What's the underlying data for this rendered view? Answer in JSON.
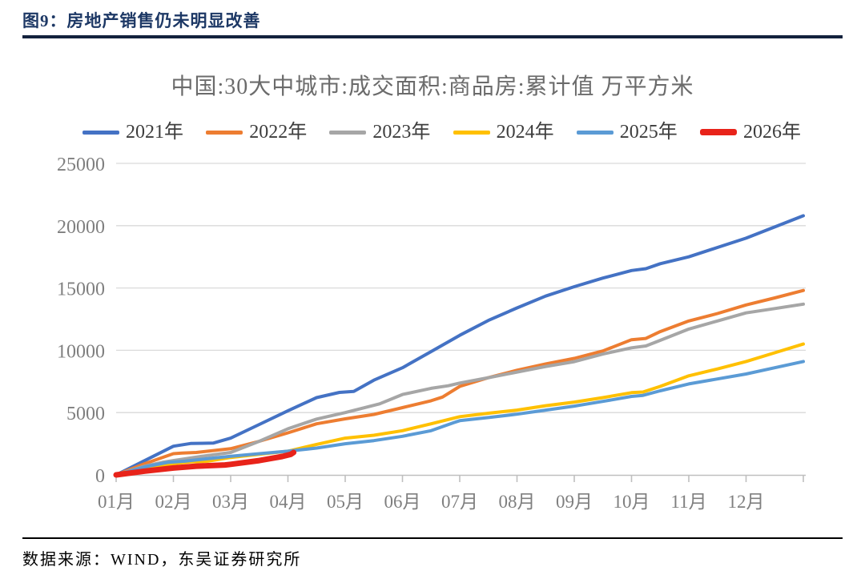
{
  "header": {
    "figure_title": "图9：房地产销售仍未明显改善"
  },
  "footer": {
    "source": "数据来源：WIND，东吴证券研究所"
  },
  "chart_data": {
    "type": "line",
    "title": "中国:30大中城市:成交面积:商品房:累计值 万平方米",
    "xlabel": "",
    "ylabel": "",
    "x_unit": "month",
    "xlabels": [
      "01月",
      "02月",
      "03月",
      "04月",
      "05月",
      "06月",
      "07月",
      "08月",
      "09月",
      "10月",
      "11月",
      "12月"
    ],
    "ylim": [
      0,
      25000
    ],
    "yticks": [
      0,
      5000,
      10000,
      15000,
      20000,
      25000
    ],
    "grid": true,
    "legend_position": "top",
    "axis_color": "#bfbfbf",
    "grid_color": "#dadada",
    "tick_label_color": "#7f7f7f",
    "series": [
      {
        "name": "2021年",
        "color": "#4472C4",
        "width": 4,
        "points": [
          [
            0,
            0
          ],
          [
            0.5,
            1150
          ],
          [
            1,
            2300
          ],
          [
            1.3,
            2520
          ],
          [
            1.7,
            2560
          ],
          [
            2,
            2950
          ],
          [
            2.5,
            4050
          ],
          [
            3,
            5150
          ],
          [
            3.5,
            6200
          ],
          [
            3.9,
            6620
          ],
          [
            4.15,
            6700
          ],
          [
            4.5,
            7600
          ],
          [
            5,
            8600
          ],
          [
            5.5,
            9900
          ],
          [
            6,
            11200
          ],
          [
            6.5,
            12400
          ],
          [
            7,
            13400
          ],
          [
            7.5,
            14350
          ],
          [
            8,
            15100
          ],
          [
            8.5,
            15800
          ],
          [
            9,
            16400
          ],
          [
            9.25,
            16550
          ],
          [
            9.5,
            16950
          ],
          [
            10,
            17500
          ],
          [
            10.5,
            18250
          ],
          [
            11,
            19000
          ],
          [
            11.5,
            19900
          ],
          [
            12,
            20800
          ]
        ]
      },
      {
        "name": "2022年",
        "color": "#ED7D31",
        "width": 4,
        "points": [
          [
            0,
            0
          ],
          [
            0.5,
            900
          ],
          [
            1,
            1700
          ],
          [
            1.15,
            1750
          ],
          [
            1.4,
            1800
          ],
          [
            2,
            2100
          ],
          [
            2.5,
            2700
          ],
          [
            3,
            3375
          ],
          [
            3.5,
            4100
          ],
          [
            4,
            4500
          ],
          [
            4.5,
            4850
          ],
          [
            5,
            5400
          ],
          [
            5.5,
            5950
          ],
          [
            5.7,
            6250
          ],
          [
            6,
            7100
          ],
          [
            6.5,
            7800
          ],
          [
            7,
            8400
          ],
          [
            7.5,
            8900
          ],
          [
            8,
            9350
          ],
          [
            8.5,
            9950
          ],
          [
            9,
            10850
          ],
          [
            9.25,
            10950
          ],
          [
            9.5,
            11500
          ],
          [
            10,
            12350
          ],
          [
            10.5,
            12950
          ],
          [
            11,
            13640
          ],
          [
            11.5,
            14200
          ],
          [
            12,
            14800
          ]
        ]
      },
      {
        "name": "2023年",
        "color": "#A6A6A6",
        "width": 4,
        "points": [
          [
            0,
            0
          ],
          [
            0.5,
            700
          ],
          [
            0.8,
            1000
          ],
          [
            1,
            1150
          ],
          [
            1.5,
            1500
          ],
          [
            2,
            1800
          ],
          [
            2.5,
            2700
          ],
          [
            3,
            3700
          ],
          [
            3.5,
            4480
          ],
          [
            4,
            5000
          ],
          [
            4.6,
            5700
          ],
          [
            5,
            6450
          ],
          [
            5.5,
            6950
          ],
          [
            5.8,
            7150
          ],
          [
            6,
            7370
          ],
          [
            6.5,
            7800
          ],
          [
            7,
            8250
          ],
          [
            7.5,
            8700
          ],
          [
            8,
            9090
          ],
          [
            8.5,
            9700
          ],
          [
            9,
            10200
          ],
          [
            9.25,
            10350
          ],
          [
            9.5,
            10800
          ],
          [
            10,
            11700
          ],
          [
            10.5,
            12350
          ],
          [
            11,
            13000
          ],
          [
            11.5,
            13350
          ],
          [
            12,
            13700
          ]
        ]
      },
      {
        "name": "2024年",
        "color": "#FFC000",
        "width": 4,
        "points": [
          [
            0,
            0
          ],
          [
            0.5,
            500
          ],
          [
            1,
            900
          ],
          [
            1.3,
            1050
          ],
          [
            1.6,
            1100
          ],
          [
            2,
            1400
          ],
          [
            2.5,
            1650
          ],
          [
            3,
            1900
          ],
          [
            3.5,
            2450
          ],
          [
            4,
            2950
          ],
          [
            4.5,
            3180
          ],
          [
            5,
            3550
          ],
          [
            5.5,
            4100
          ],
          [
            6,
            4675
          ],
          [
            6.5,
            4950
          ],
          [
            7,
            5200
          ],
          [
            7.5,
            5550
          ],
          [
            8,
            5840
          ],
          [
            8.5,
            6200
          ],
          [
            9,
            6600
          ],
          [
            9.2,
            6650
          ],
          [
            9.5,
            7100
          ],
          [
            10,
            7950
          ],
          [
            10.5,
            8500
          ],
          [
            11,
            9100
          ],
          [
            11.5,
            9800
          ],
          [
            12,
            10500
          ]
        ]
      },
      {
        "name": "2025年",
        "color": "#5B9BD5",
        "width": 4,
        "points": [
          [
            0,
            0
          ],
          [
            0.5,
            650
          ],
          [
            0.9,
            1000
          ],
          [
            1.2,
            1100
          ],
          [
            1.5,
            1250
          ],
          [
            2,
            1500
          ],
          [
            2.5,
            1700
          ],
          [
            3,
            1900
          ],
          [
            3.5,
            2150
          ],
          [
            4,
            2500
          ],
          [
            4.5,
            2750
          ],
          [
            5,
            3100
          ],
          [
            5.5,
            3550
          ],
          [
            5.9,
            4200
          ],
          [
            6,
            4350
          ],
          [
            6.5,
            4600
          ],
          [
            7,
            4870
          ],
          [
            7.5,
            5200
          ],
          [
            8,
            5520
          ],
          [
            8.5,
            5900
          ],
          [
            9,
            6300
          ],
          [
            9.2,
            6380
          ],
          [
            9.5,
            6750
          ],
          [
            10,
            7300
          ],
          [
            10.5,
            7700
          ],
          [
            11,
            8100
          ],
          [
            11.5,
            8600
          ],
          [
            12,
            9100
          ]
        ]
      },
      {
        "name": "2026年",
        "color": "#E8231A",
        "width": 7,
        "points": [
          [
            0,
            0
          ],
          [
            0.5,
            300
          ],
          [
            1,
            550
          ],
          [
            1.4,
            700
          ],
          [
            1.9,
            800
          ],
          [
            2,
            850
          ],
          [
            2.5,
            1150
          ],
          [
            2.9,
            1480
          ],
          [
            3.05,
            1650
          ],
          [
            3.1,
            1800
          ]
        ]
      }
    ]
  }
}
